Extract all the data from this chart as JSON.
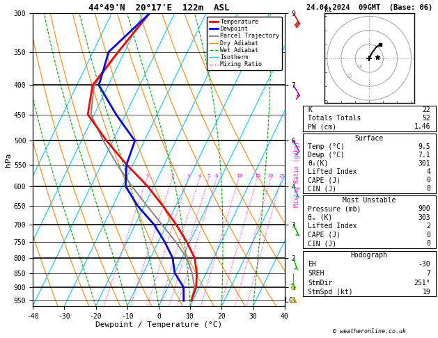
{
  "title_left": "44°49'N  20°17'E  122m  ASL",
  "title_right": "24.04.2024  09GMT  (Base: 06)",
  "xlabel": "Dewpoint / Temperature (°C)",
  "temp_min": -40,
  "temp_max": 40,
  "P_min": 300,
  "P_max": 970,
  "skew_factor": 45.0,
  "pressure_levels": [
    300,
    350,
    400,
    450,
    500,
    550,
    600,
    650,
    700,
    750,
    800,
    850,
    900,
    950
  ],
  "pressure_major": [
    300,
    400,
    500,
    600,
    700,
    800,
    900
  ],
  "color_temperature": "#ff0000",
  "color_dewpoint": "#0000ff",
  "color_parcel": "#888888",
  "color_dry_adiabat": "#ff8800",
  "color_wet_adiabat": "#00aa00",
  "color_isotherm": "#00ccff",
  "color_mixing_ratio": "#ff00ff",
  "temperature_T": [
    9.5,
    9.0,
    7.0,
    4.0,
    -1.0,
    -7.0,
    -14.0,
    -22.0,
    -32.0,
    -42.0,
    -52.0,
    -55.0,
    -52.0,
    -48.0
  ],
  "temperature_P": [
    950,
    900,
    850,
    800,
    750,
    700,
    650,
    600,
    550,
    500,
    450,
    400,
    350,
    300
  ],
  "dewpoint_T": [
    7.1,
    5.0,
    0.0,
    -3.0,
    -8.0,
    -14.0,
    -22.0,
    -29.0,
    -32.0,
    -33.0,
    -43.0,
    -53.0,
    -55.0,
    -48.0
  ],
  "dewpoint_P": [
    950,
    900,
    850,
    800,
    750,
    700,
    650,
    600,
    550,
    500,
    450,
    400,
    350,
    300
  ],
  "parcel_T": [
    9.5,
    8.5,
    5.5,
    1.5,
    -4.5,
    -11.5,
    -19.0,
    -27.0,
    -35.0,
    -43.0,
    -51.0,
    -54.5,
    -52.0,
    -48.0
  ],
  "parcel_P": [
    950,
    900,
    850,
    800,
    750,
    700,
    650,
    600,
    550,
    500,
    450,
    400,
    350,
    300
  ],
  "mixing_ratio_ws": [
    1,
    2,
    3,
    4,
    5,
    6,
    10,
    15,
    20,
    25
  ],
  "km_ticks_P": [
    300,
    400,
    500,
    600,
    700,
    800,
    900
  ],
  "km_ticks_val": [
    9,
    7,
    6,
    4,
    3,
    2,
    1
  ],
  "stats_K": 22,
  "stats_TT": 52,
  "stats_PW": "1.46",
  "stats_sfc_T": "9.5",
  "stats_sfc_Td": "7.1",
  "stats_sfc_thetae": 301,
  "stats_sfc_LI": 4,
  "stats_sfc_CAPE": 0,
  "stats_sfc_CIN": 0,
  "stats_mu_P": 900,
  "stats_mu_thetae": 303,
  "stats_mu_LI": 2,
  "stats_mu_CAPE": 0,
  "stats_mu_CIN": 0,
  "stats_EH": -30,
  "stats_SREH": 7,
  "stats_StmDir": "251°",
  "stats_StmSpd": 19,
  "wind_barbs": [
    [
      300,
      -15,
      25,
      "#ff0000"
    ],
    [
      400,
      -8,
      14,
      "#aa00aa"
    ],
    [
      500,
      -5,
      9,
      "#4444ff"
    ],
    [
      600,
      -3,
      6,
      "#00bbbb"
    ],
    [
      700,
      -2,
      4,
      "#00aa00"
    ],
    [
      800,
      -1,
      3,
      "#00cc00"
    ],
    [
      850,
      0,
      3,
      "#00cc00"
    ],
    [
      900,
      1,
      2,
      "#88bb00"
    ],
    [
      950,
      0,
      1,
      "#ccaa00"
    ]
  ]
}
